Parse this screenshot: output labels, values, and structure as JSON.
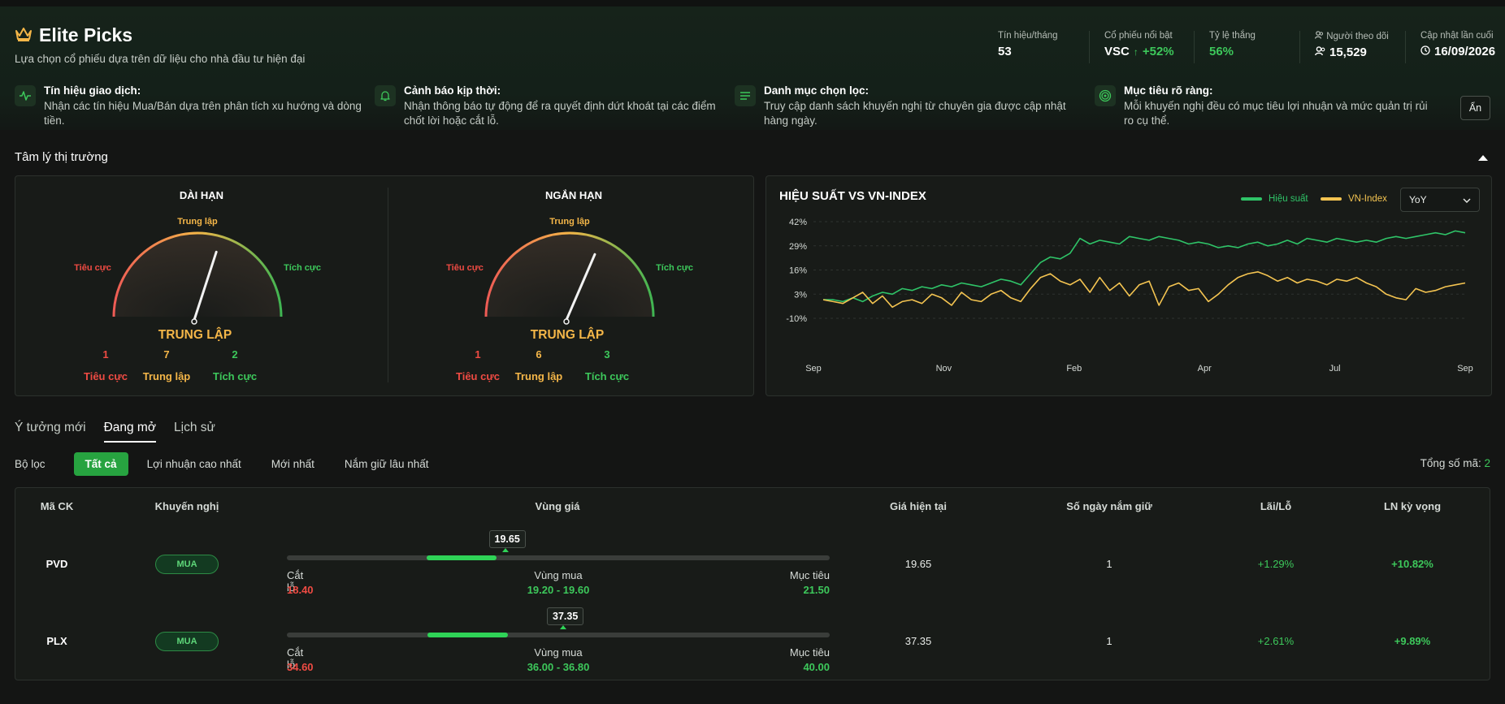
{
  "header": {
    "title": "Elite Picks",
    "subtitle": "Lựa chọn cổ phiếu dựa trên dữ liệu cho nhà đầu tư hiện đại",
    "stats": [
      {
        "label": "Tín hiệu/tháng",
        "value": "53"
      },
      {
        "label": "Cổ phiếu nổi bật",
        "value": "VSC",
        "change": "+52%"
      },
      {
        "label": "Tỷ lệ thắng",
        "value": "56%"
      },
      {
        "label": "Người theo dõi",
        "value": "15,529"
      },
      {
        "label": "Cập nhật lần cuối",
        "value": "16/09/2026"
      }
    ],
    "features": [
      {
        "title": "Tín hiệu giao dịch:",
        "desc": "Nhận các tín hiệu Mua/Bán dựa trên phân tích xu hướng và dòng tiền.",
        "icon": "activity-icon"
      },
      {
        "title": "Cảnh báo kịp thời:",
        "desc": "Nhận thông báo tự động để ra quyết định dứt khoát tại các điểm chốt lời hoặc cắt lỗ.",
        "icon": "bell-icon"
      },
      {
        "title": "Danh mục chọn lọc:",
        "desc": "Truy cập danh sách khuyến nghị từ chuyên gia được cập nhật hàng ngày.",
        "icon": "list-icon"
      },
      {
        "title": "Mục tiêu rõ ràng:",
        "desc": "Mỗi khuyến nghị đều có mục tiêu lợi nhuận và mức quản trị rủi ro cụ thể.",
        "icon": "target-icon"
      }
    ],
    "hide_label": "Ẩn"
  },
  "sentiment": {
    "title": "Tâm lý thị trường",
    "gauges": [
      {
        "title": "DÀI HẠN",
        "top_label": "Trung lập",
        "left_label": "Tiêu cực",
        "right_label": "Tích cực",
        "state": "TRUNG LẬP",
        "counts": [
          {
            "num": "1",
            "label": "Tiêu cực"
          },
          {
            "num": "7",
            "label": "Trung lập"
          },
          {
            "num": "2",
            "label": "Tích cực"
          }
        ],
        "needle_pct": 0.6
      },
      {
        "title": "NGẮN HẠN",
        "top_label": "Trung lập",
        "left_label": "Tiêu cực",
        "right_label": "Tích cực",
        "state": "TRUNG LẬP",
        "counts": [
          {
            "num": "1",
            "label": "Tiêu cực"
          },
          {
            "num": "6",
            "label": "Trung lập"
          },
          {
            "num": "3",
            "label": "Tích cực"
          }
        ],
        "needle_pct": 0.63
      }
    ]
  },
  "chart_data": {
    "type": "line",
    "title": "HIỆU SUẤT VS VN-INDEX",
    "x_ticks": [
      "Sep",
      "Nov",
      "Feb",
      "Apr",
      "Jul",
      "Sep"
    ],
    "y_ticks": [
      "42%",
      "29%",
      "16%",
      "3%",
      "-10%"
    ],
    "ylim": [
      -10,
      42
    ],
    "grid": true,
    "legend": "top-right",
    "period_select": "YoY",
    "series": [
      {
        "name": "Hiệu suất",
        "color": "#2fc468",
        "values": [
          0,
          0,
          -1,
          1,
          -1,
          2,
          4,
          3,
          6,
          5,
          7,
          6,
          8,
          7,
          9,
          8,
          7,
          9,
          11,
          10,
          8,
          14,
          20,
          23,
          22,
          25,
          33,
          30,
          32,
          31,
          30,
          34,
          33,
          32,
          34,
          33,
          32,
          30,
          31,
          30,
          28,
          29,
          28,
          30,
          31,
          29,
          30,
          32,
          30,
          33,
          32,
          31,
          33,
          32,
          31,
          32,
          31,
          33,
          34,
          33,
          34,
          35,
          36,
          35,
          37,
          36
        ]
      },
      {
        "name": "VN-Index",
        "color": "#f4c451",
        "values": [
          0,
          -1,
          -2,
          1,
          4,
          -2,
          2,
          -4,
          -1,
          0,
          -2,
          3,
          1,
          -3,
          4,
          0,
          -1,
          3,
          5,
          1,
          -1,
          6,
          12,
          14,
          10,
          8,
          11,
          4,
          12,
          5,
          9,
          2,
          8,
          10,
          -3,
          7,
          9,
          5,
          6,
          -1,
          3,
          8,
          12,
          14,
          15,
          13,
          10,
          12,
          9,
          11,
          10,
          8,
          11,
          10,
          12,
          9,
          7,
          3,
          1,
          0,
          6,
          4,
          5,
          7,
          8,
          9
        ]
      }
    ]
  },
  "tabs": [
    {
      "label": "Ý tưởng mới"
    },
    {
      "label": "Đang mở"
    },
    {
      "label": "Lịch sử"
    }
  ],
  "filters": {
    "label": "Bộ lọc",
    "chips": [
      {
        "label": "Tất cả"
      },
      {
        "label": "Lợi nhuận cao nhất"
      },
      {
        "label": "Mới nhất"
      },
      {
        "label": "Nắm giữ lâu nhất"
      }
    ],
    "total_label": "Tổng số mã:",
    "total_value": "2"
  },
  "table": {
    "headers": [
      "Mã CK",
      "Khuyến nghị",
      "Vùng giá",
      "Giá hiện tại",
      "Số ngày nắm giữ",
      "Lãi/Lỗ",
      "LN kỳ vọng"
    ],
    "labels": {
      "stop": "Cắt lỗ",
      "buy": "Vùng mua",
      "target": "Mục tiêu"
    },
    "rows": [
      {
        "ticker": "PVD",
        "rec": "MUA",
        "price_tag": "19.65",
        "stop": "18.40",
        "buy_zone": "19.20 - 19.60",
        "target": "21.50",
        "current": "19.65",
        "days": "1",
        "pnl": "+1.29%",
        "expected": "+10.82%",
        "fill_start": 0.258,
        "fill_end": 0.386,
        "marker": 0.402
      },
      {
        "ticker": "PLX",
        "rec": "MUA",
        "price_tag": "37.35",
        "stop": "34.60",
        "buy_zone": "36.00 - 36.80",
        "target": "40.00",
        "current": "37.35",
        "days": "1",
        "pnl": "+2.61%",
        "expected": "+9.89%",
        "fill_start": 0.259,
        "fill_end": 0.407,
        "marker": 0.509
      }
    ]
  }
}
